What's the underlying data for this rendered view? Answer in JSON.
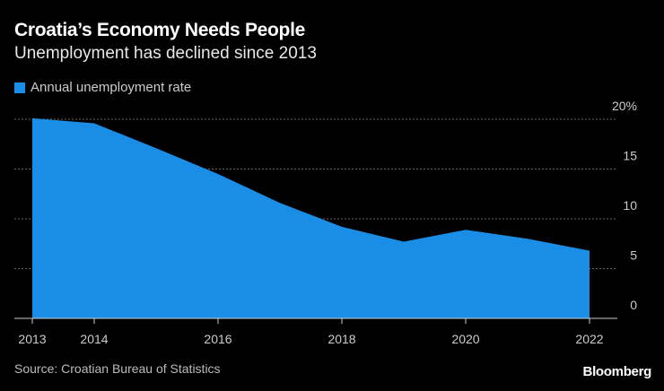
{
  "header": {
    "title": "Croatia’s Economy Needs People",
    "subtitle": "Unemployment has declined since 2013"
  },
  "footer": {
    "source": "Source: Croatian Bureau of Statistics",
    "logo": "Bloomberg"
  },
  "colors": {
    "series": "#1a8ee6",
    "grid": "#666666",
    "axis": "#cccccc"
  },
  "chart_data": {
    "type": "area",
    "title": "Croatia’s Economy Needs People",
    "subtitle": "Unemployment has declined since 2013",
    "legend": [
      "Annual unemployment rate"
    ],
    "legend_position": "top-left",
    "x": [
      2013,
      2014,
      2015,
      2016,
      2017,
      2018,
      2019,
      2020,
      2021,
      2022
    ],
    "series": [
      {
        "name": "Annual unemployment rate",
        "values": [
          20.1,
          19.6,
          17.1,
          14.5,
          11.6,
          9.2,
          7.7,
          8.9,
          8.0,
          6.8
        ]
      }
    ],
    "xticks": [
      "2013",
      "2014",
      "2016",
      "2018",
      "2020",
      "2022"
    ],
    "xtick_values": [
      2013,
      2014,
      2016,
      2018,
      2020,
      2022
    ],
    "yticks": [
      "0",
      "5",
      "10",
      "15",
      "20%"
    ],
    "ytick_values": [
      0,
      5,
      10,
      15,
      20
    ],
    "ylim": [
      0,
      20
    ],
    "ylabel": "",
    "xlabel": "",
    "grid": true
  }
}
